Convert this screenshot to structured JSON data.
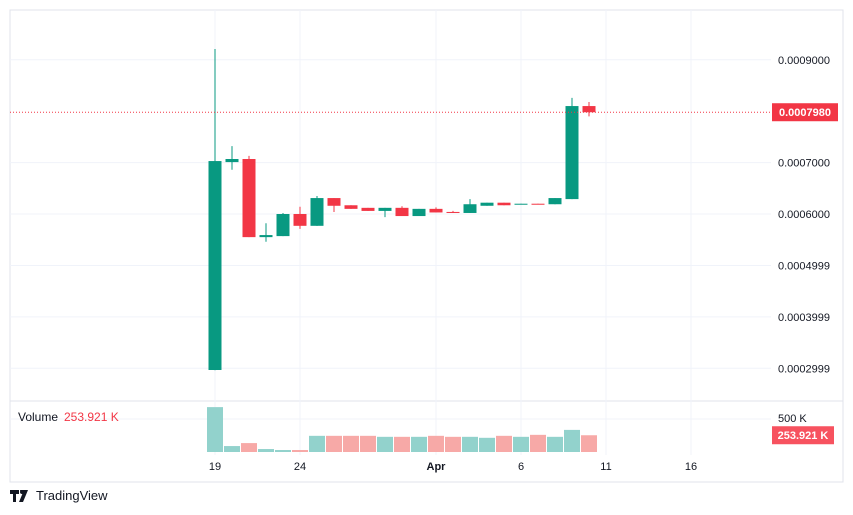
{
  "chart_data": {
    "type": "candlestick",
    "x": [
      "Mar 19",
      "Mar 20",
      "Mar 21",
      "Mar 22",
      "Mar 23",
      "Mar 24",
      "Mar 25",
      "Mar 26",
      "Mar 27",
      "Mar 28",
      "Mar 29",
      "Mar 30",
      "Mar 31",
      "Apr 1",
      "Apr 2",
      "Apr 3",
      "Apr 4",
      "Apr 5",
      "Apr 6",
      "Apr 7",
      "Apr 8",
      "Apr 9",
      "Apr 10"
    ],
    "ohlc": [
      [
        0.0002965,
        0.000921,
        0.000296,
        0.000703
      ],
      [
        0.000701,
        0.000732,
        0.000686,
        0.000707
      ],
      [
        0.000707,
        0.000713,
        0.000555,
        0.000555
      ],
      [
        0.000555,
        0.000582,
        0.000546,
        0.000559
      ],
      [
        0.000557,
        0.000602,
        0.000557,
        0.0006
      ],
      [
        0.0006,
        0.000614,
        0.000571,
        0.000577
      ],
      [
        0.000577,
        0.000635,
        0.000577,
        0.000631
      ],
      [
        0.000631,
        0.000631,
        0.000604,
        0.000616
      ],
      [
        0.000617,
        0.000617,
        0.00061,
        0.00061
      ],
      [
        0.000612,
        0.000612,
        0.000606,
        0.000606
      ],
      [
        0.000606,
        0.000612,
        0.000594,
        0.000612
      ],
      [
        0.000612,
        0.000615,
        0.000596,
        0.000596
      ],
      [
        0.000596,
        0.00061,
        0.000596,
        0.00061
      ],
      [
        0.00061,
        0.000613,
        0.000603,
        0.000603
      ],
      [
        0.000604,
        0.000606,
        0.000602,
        0.000602
      ],
      [
        0.000602,
        0.000629,
        0.000602,
        0.000619
      ],
      [
        0.000616,
        0.000622,
        0.000616,
        0.000622
      ],
      [
        0.000622,
        0.000622,
        0.000617,
        0.000617
      ],
      [
        0.000619,
        0.00062,
        0.000619,
        0.00062
      ],
      [
        0.00062,
        0.00062,
        0.000619,
        0.000619
      ],
      [
        0.000619,
        0.000631,
        0.000619,
        0.000631
      ],
      [
        0.000629,
        0.000826,
        0.000629,
        0.00081
      ],
      [
        0.00081,
        0.000818,
        0.00079,
        0.000798
      ]
    ],
    "volume": [
      680000,
      90000,
      135000,
      45000,
      30000,
      30000,
      245000,
      245000,
      245000,
      245000,
      230000,
      230000,
      230000,
      245000,
      230000,
      230000,
      215000,
      245000,
      230000,
      260000,
      230000,
      335000,
      253921
    ],
    "price_ticks": [
      "0.0009000",
      "0.0007000",
      "0.0006000",
      "0.0004999",
      "0.0003999",
      "0.0002999"
    ],
    "price_tick_values": [
      0.0009,
      0.0007,
      0.0006,
      0.0004999,
      0.0003999,
      0.0002999
    ],
    "ylim": [
      0.00025,
      0.00095
    ],
    "time_ticks": [
      "19",
      "24",
      "Apr",
      "6",
      "11",
      "16"
    ],
    "time_tick_days": [
      0,
      5,
      13,
      18,
      23,
      28
    ],
    "volume_tick": "500 K",
    "last_price": "0.0007980",
    "last_price_value": 0.000798,
    "last_volume": "253.921 K",
    "volume_label": "Volume",
    "volume_value": "253.921 K",
    "grid": true,
    "colors": {
      "up": "#089981",
      "down": "#f23645",
      "up_vol": "#92d2cc",
      "down_vol": "#f7a9a7",
      "grid": "#f0f3fa"
    }
  },
  "brand": "TradingView"
}
